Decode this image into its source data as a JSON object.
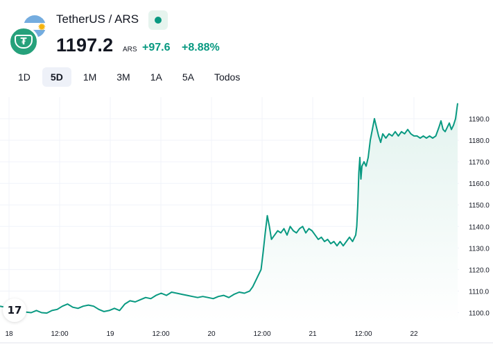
{
  "header": {
    "title": "TetherUS / ARS",
    "price": "1197.2",
    "currency": "ARS",
    "change": "+97.6",
    "change_pct": "+8.88%",
    "logo_mark": "₮",
    "icons": {
      "base": "tether-logo-icon",
      "quote": "argentina-flag-icon",
      "status": "market-open-dot-icon"
    }
  },
  "tabs": [
    {
      "label": "1D",
      "active": false
    },
    {
      "label": "5D",
      "active": true
    },
    {
      "label": "1M",
      "active": false
    },
    {
      "label": "3M",
      "active": false
    },
    {
      "label": "1A",
      "active": false
    },
    {
      "label": "5A",
      "active": false
    },
    {
      "label": "Todos",
      "active": false
    }
  ],
  "colors": {
    "line": "#089981",
    "up_volume": "#7ec4b6",
    "down_volume": "#f0a9a3",
    "grid": "#f0f3fa",
    "fill_top": "#e3f3ef",
    "fill_bottom": "#ffffff"
  },
  "watermark": {
    "mark": "17"
  },
  "chart_data": {
    "type": "area",
    "x_tick_labels": [
      "18",
      "12:00",
      "19",
      "12:00",
      "20",
      "12:00",
      "21",
      "12:00",
      "22"
    ],
    "y_tick_labels": [
      "1100.0",
      "1110.0",
      "1120.0",
      "1130.0",
      "1140.0",
      "1150.0",
      "1160.0",
      "1170.0",
      "1180.0",
      "1190.0"
    ],
    "ylim": [
      1095,
      1200
    ],
    "grid": true,
    "series": [
      {
        "values": [
          [
            0,
            1103
          ],
          [
            0.5,
            1102.5
          ],
          [
            1,
            1101.5
          ],
          [
            1.5,
            1101
          ],
          [
            2,
            1100.5
          ],
          [
            3,
            1100
          ],
          [
            3.5,
            1101
          ],
          [
            4,
            1100
          ],
          [
            4.5,
            1099.8
          ],
          [
            5,
            1101
          ],
          [
            5.5,
            1101.5
          ],
          [
            6,
            1103
          ],
          [
            6.5,
            1104
          ],
          [
            7,
            1102.5
          ],
          [
            7.5,
            1102
          ],
          [
            8,
            1103
          ],
          [
            8.5,
            1103.5
          ],
          [
            9,
            1103
          ],
          [
            9.5,
            1101.5
          ],
          [
            10,
            1100.5
          ],
          [
            10.5,
            1101
          ],
          [
            11,
            1102
          ],
          [
            11.5,
            1101
          ],
          [
            12,
            1104
          ],
          [
            12.5,
            1105.5
          ],
          [
            13,
            1105
          ],
          [
            13.5,
            1106
          ],
          [
            14,
            1107
          ],
          [
            14.5,
            1106.5
          ],
          [
            15,
            1108
          ],
          [
            15.5,
            1109
          ],
          [
            16,
            1108
          ],
          [
            16.5,
            1109.5
          ],
          [
            17,
            1109
          ],
          [
            17.5,
            1108.5
          ],
          [
            18,
            1108
          ],
          [
            18.5,
            1107.5
          ],
          [
            19,
            1107
          ],
          [
            19.5,
            1107.5
          ],
          [
            20,
            1107
          ],
          [
            20.5,
            1106.5
          ],
          [
            21,
            1107.5
          ],
          [
            21.5,
            1108
          ],
          [
            22,
            1107
          ],
          [
            22.5,
            1108.5
          ],
          [
            23,
            1109.5
          ],
          [
            23.5,
            1109
          ],
          [
            24,
            1110
          ],
          [
            24.3,
            1112
          ],
          [
            24.6,
            1115
          ],
          [
            24.9,
            1118
          ],
          [
            25.1,
            1120
          ],
          [
            25.3,
            1128
          ],
          [
            25.5,
            1137
          ],
          [
            25.7,
            1145
          ],
          [
            25.9,
            1140
          ],
          [
            26.1,
            1134
          ],
          [
            26.4,
            1136
          ],
          [
            26.7,
            1138
          ],
          [
            27,
            1137
          ],
          [
            27.3,
            1139
          ],
          [
            27.6,
            1136
          ],
          [
            27.9,
            1140
          ],
          [
            28.2,
            1138
          ],
          [
            28.5,
            1137
          ],
          [
            28.8,
            1139
          ],
          [
            29.1,
            1140
          ],
          [
            29.4,
            1137
          ],
          [
            29.7,
            1139
          ],
          [
            30,
            1138
          ],
          [
            30.3,
            1136
          ],
          [
            30.6,
            1134
          ],
          [
            30.9,
            1135
          ],
          [
            31.2,
            1133
          ],
          [
            31.5,
            1134
          ],
          [
            31.8,
            1132
          ],
          [
            32.1,
            1133
          ],
          [
            32.4,
            1131
          ],
          [
            32.7,
            1133
          ],
          [
            33,
            1131
          ],
          [
            33.3,
            1133
          ],
          [
            33.6,
            1135
          ],
          [
            33.9,
            1133
          ],
          [
            34.2,
            1136
          ],
          [
            34.3,
            1140
          ],
          [
            34.4,
            1150
          ],
          [
            34.5,
            1165
          ],
          [
            34.6,
            1172
          ],
          [
            34.7,
            1162
          ],
          [
            34.8,
            1168
          ],
          [
            35,
            1170
          ],
          [
            35.2,
            1168
          ],
          [
            35.4,
            1172
          ],
          [
            35.6,
            1180
          ],
          [
            35.8,
            1185
          ],
          [
            36,
            1190
          ],
          [
            36.2,
            1186
          ],
          [
            36.4,
            1182
          ],
          [
            36.6,
            1179
          ],
          [
            36.8,
            1183
          ],
          [
            37.1,
            1181
          ],
          [
            37.4,
            1183
          ],
          [
            37.7,
            1182
          ],
          [
            38,
            1184
          ],
          [
            38.3,
            1182
          ],
          [
            38.6,
            1184
          ],
          [
            38.9,
            1183
          ],
          [
            39.2,
            1185
          ],
          [
            39.5,
            1183
          ],
          [
            39.8,
            1182
          ],
          [
            40.1,
            1182
          ],
          [
            40.4,
            1181
          ],
          [
            40.7,
            1182
          ],
          [
            41,
            1181
          ],
          [
            41.3,
            1182
          ],
          [
            41.6,
            1181
          ],
          [
            41.9,
            1182
          ],
          [
            42.2,
            1186
          ],
          [
            42.4,
            1189
          ],
          [
            42.6,
            1185
          ],
          [
            42.8,
            1184
          ],
          [
            43,
            1186
          ],
          [
            43.2,
            1188
          ],
          [
            43.4,
            1185
          ],
          [
            43.6,
            1187
          ],
          [
            43.8,
            1190
          ],
          [
            44,
            1197.2
          ]
        ]
      }
    ]
  }
}
